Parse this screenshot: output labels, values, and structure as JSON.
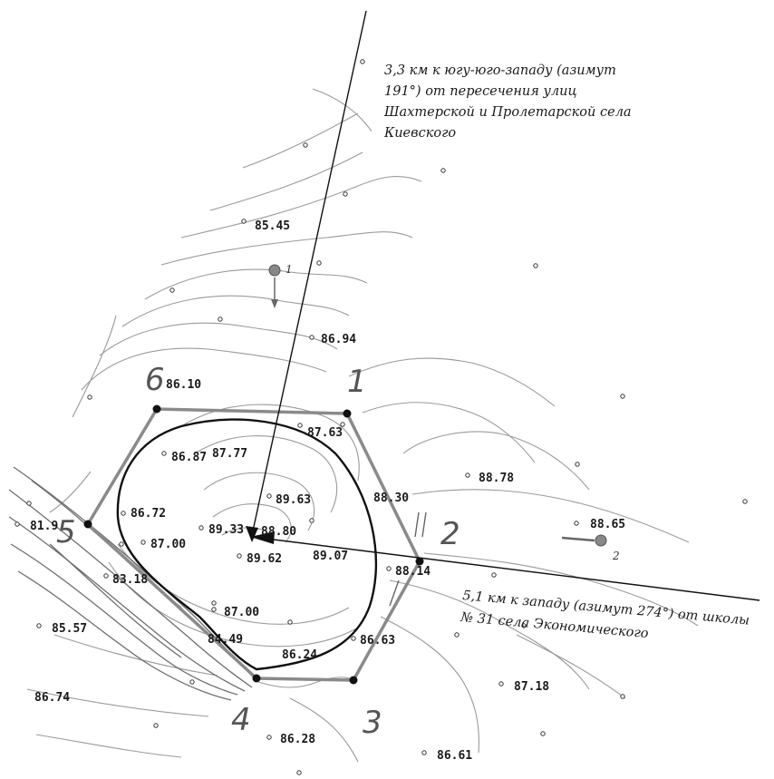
{
  "colors": {
    "polygon": "#8a8a8a",
    "boundary": "#111111",
    "contour": "#9a9a9a",
    "pointer": "#111111"
  },
  "vertices": [
    {
      "label": "1"
    },
    {
      "label": "2"
    },
    {
      "label": "3"
    },
    {
      "label": "4"
    },
    {
      "label": "5"
    },
    {
      "label": "6"
    }
  ],
  "elevations": [
    "85.45",
    "86.94",
    "86.10",
    "87.63",
    "86.87",
    "87.77",
    "88.78",
    "89.63",
    "88.30",
    "86.72",
    "89.33",
    "88.80",
    "88.65",
    "81.9",
    "87.00",
    "89.62",
    "89.07",
    "88.14",
    "83.18",
    "87.00",
    "85.57",
    "84.49",
    "86.24",
    "86.63",
    "87.18",
    "86.74",
    "86.28",
    "86.61"
  ],
  "wells": [
    {
      "label": "1"
    },
    {
      "label": "2"
    }
  ],
  "annotations": {
    "north": [
      "3,3 км к югу-юго-западу (азимут",
      "191°) от пересечения улиц",
      "Шахтерской и Пролетарской села",
      "Киевского"
    ],
    "east": [
      "5,1 км к западу (азимут 274°) от школы",
      "№ 31 села Экономического"
    ]
  }
}
